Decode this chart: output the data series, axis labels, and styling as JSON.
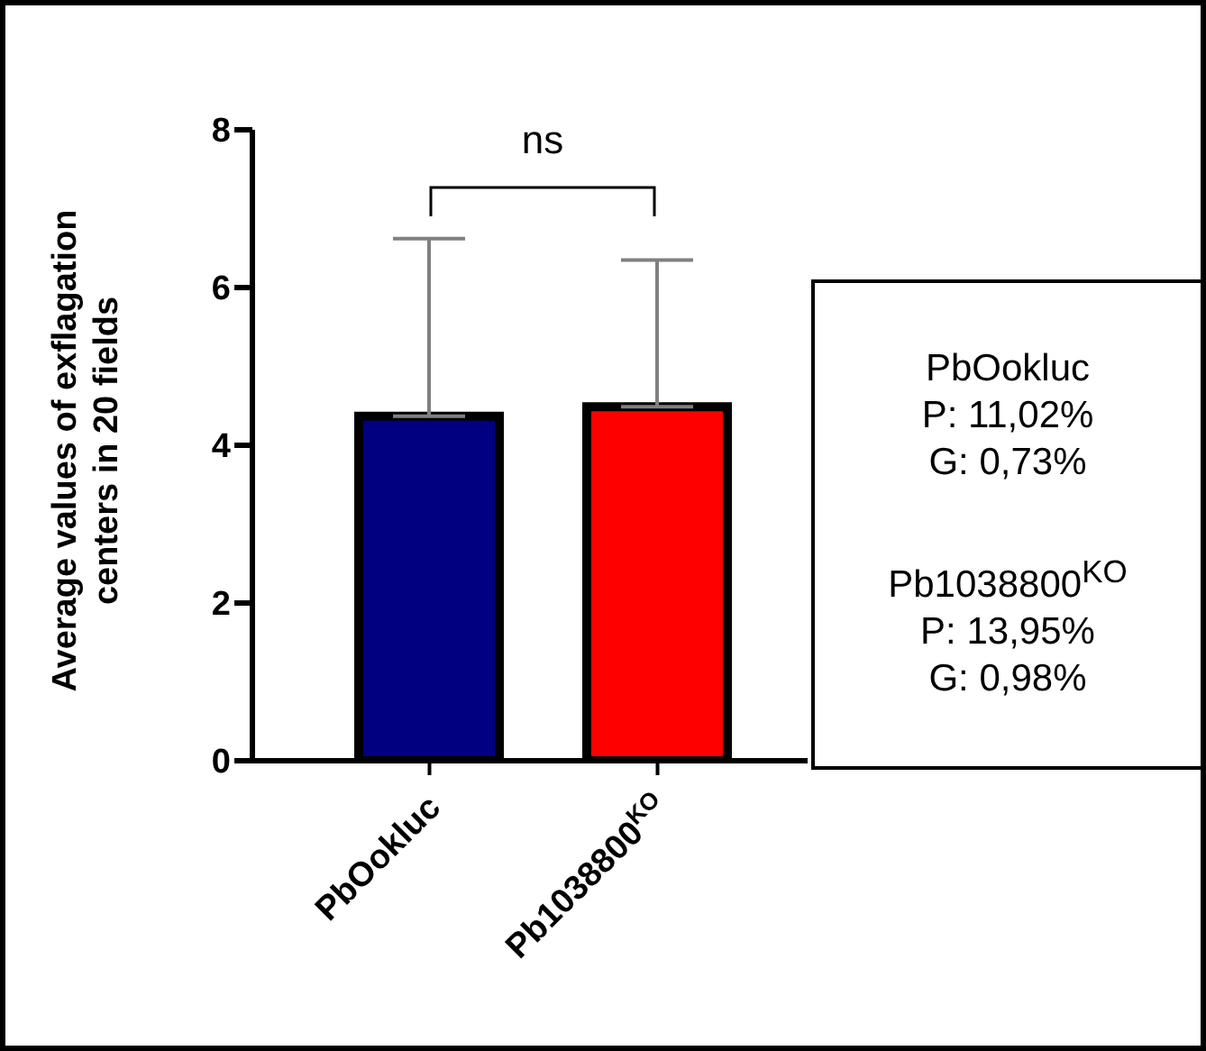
{
  "chart_data": {
    "type": "bar",
    "ylabel": "Average values of exflagation centers in 20 fields",
    "categories": [
      "PbOokluc",
      "Pb1038800$^{KO}$"
    ],
    "values": [
      4.37,
      4.49
    ],
    "colors": [
      "#000080",
      "#ff0000"
    ],
    "errors": [
      [
        4.37,
        6.62
      ],
      [
        4.49,
        6.35
      ]
    ],
    "ylim": [
      0,
      8
    ],
    "yticks": [
      0,
      2,
      4,
      6,
      8
    ],
    "grid": false,
    "legend": false,
    "annotations": [
      "ns",
      "PbOokluc\nP: 11,02%\nG: 0,73%",
      "Pb1038800$^{KO}$\nP: 13,95%\nG: 0,98%"
    ]
  }
}
